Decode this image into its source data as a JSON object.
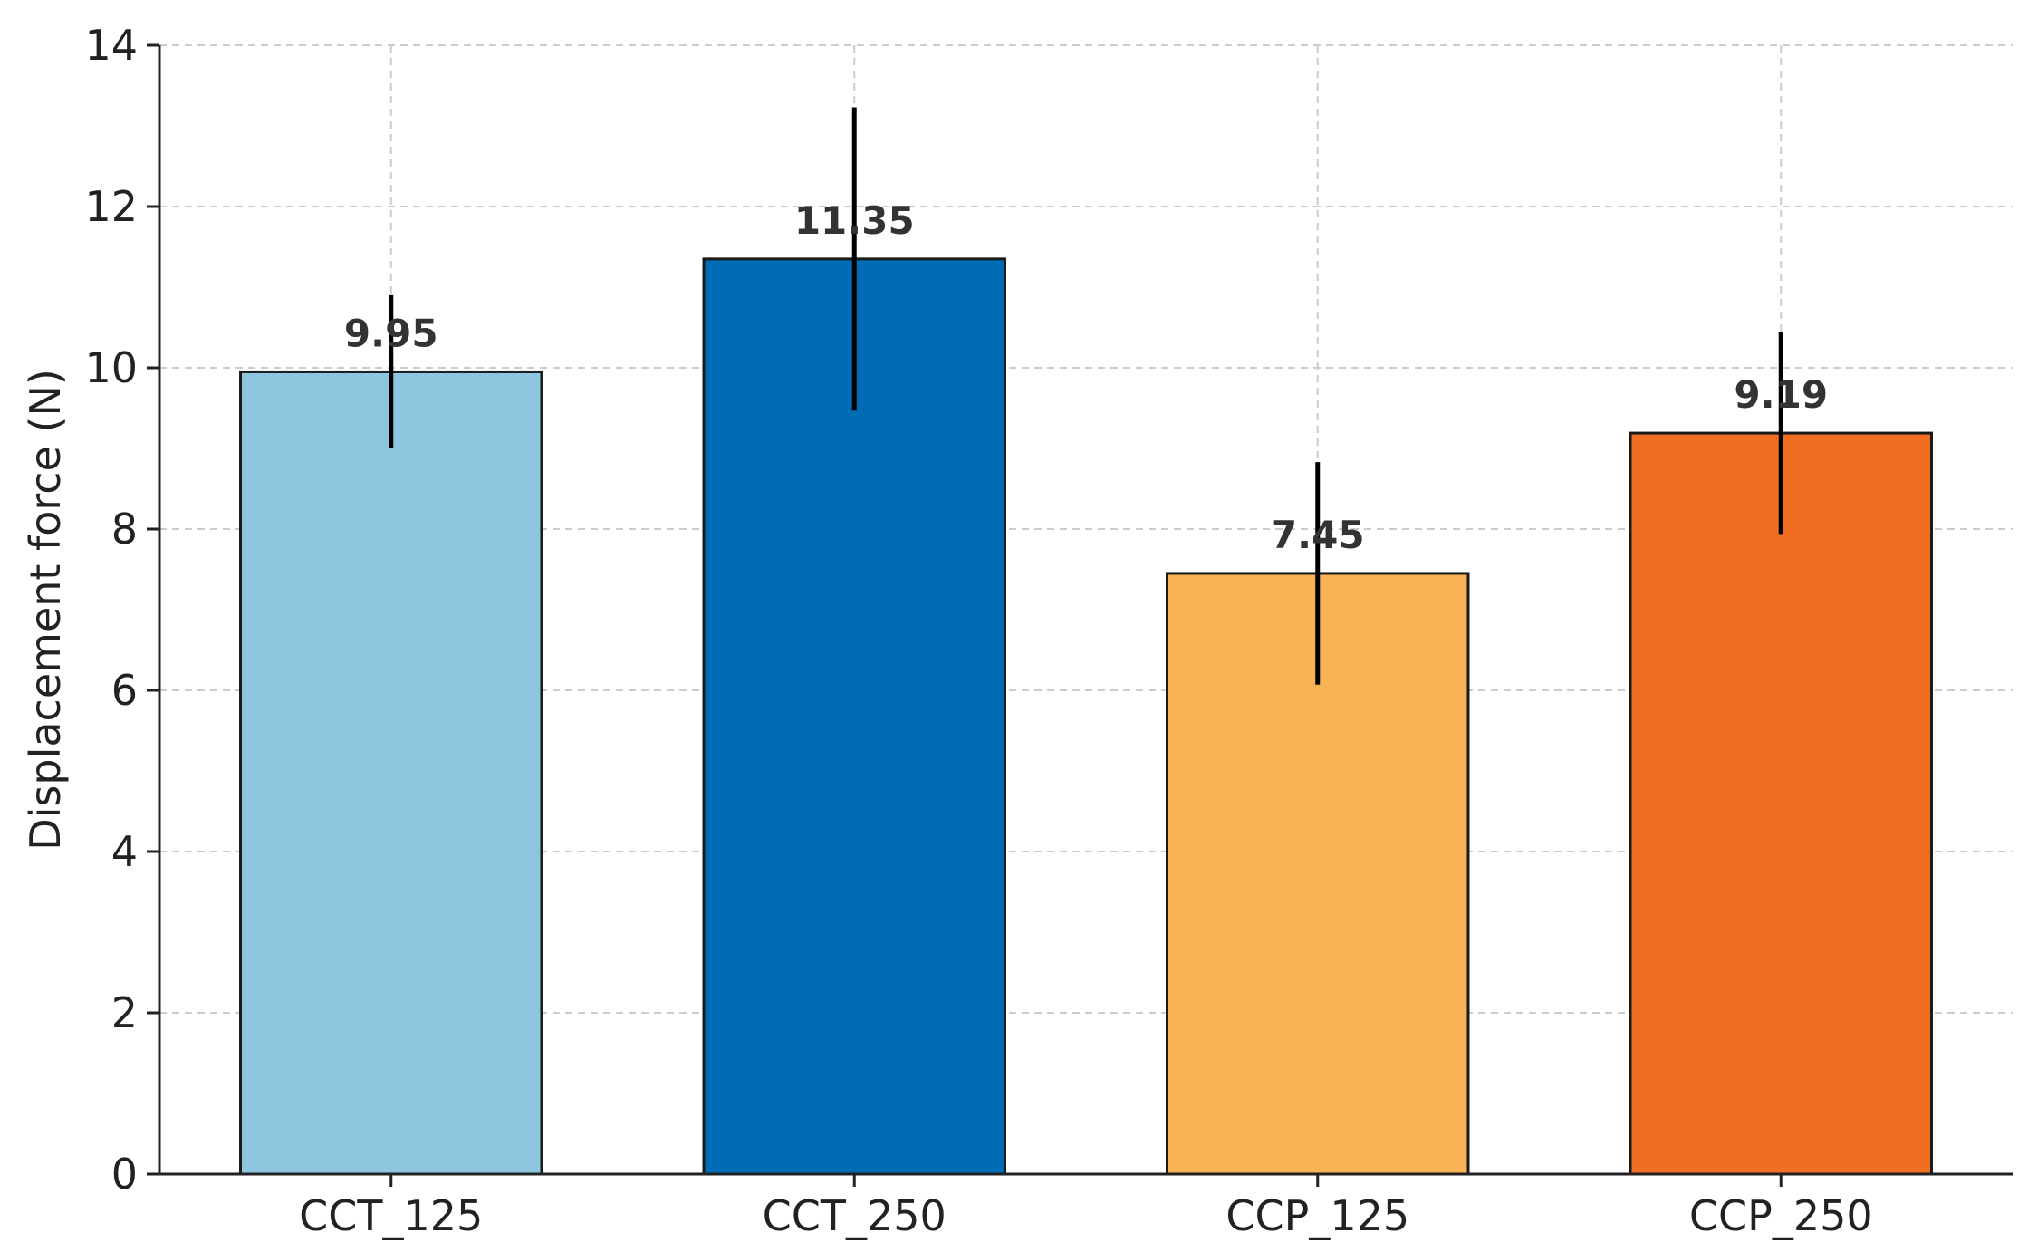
{
  "chart_data": {
    "type": "bar",
    "title": "",
    "xlabel": "",
    "ylabel": "Displacement force (N)",
    "ylim": [
      0,
      14
    ],
    "yticks": [
      0,
      2,
      4,
      6,
      8,
      10,
      12,
      14
    ],
    "grid": true,
    "categories": [
      "CCT_125",
      "CCT_250",
      "CCP_125",
      "CCP_250"
    ],
    "values": [
      9.95,
      11.35,
      7.45,
      9.19
    ],
    "value_labels": [
      "9.95",
      "11.35",
      "7.45",
      "9.19"
    ],
    "error": [
      0.95,
      1.88,
      1.38,
      1.25
    ],
    "colors": [
      "#8ec6e0",
      "#006cb4",
      "#f8b354",
      "#ef6e21"
    ]
  }
}
